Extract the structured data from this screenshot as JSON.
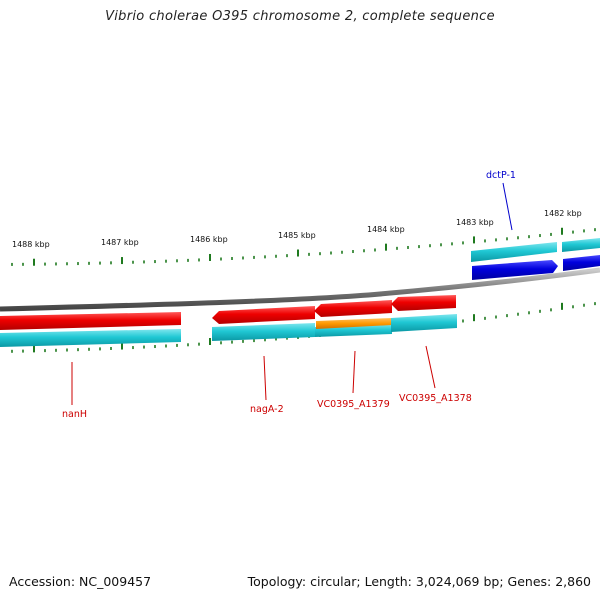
{
  "title": "Vibrio cholerae O395 chromosome 2, complete sequence",
  "footer": {
    "accession": "Accession: NC_009457",
    "summary": "Topology: circular; Length: 3,024,069 bp; Genes: 2,860"
  },
  "scale_labels": [
    "1488 kbp",
    "1487 kbp",
    "1486 kbp",
    "1485 kbp",
    "1484 kbp",
    "1483 kbp",
    "1482 kbp"
  ],
  "gene_labels": {
    "dctP": "dctP-1",
    "nanH": "nanH",
    "nagA": "nagA-2",
    "a1379": "VC0395_A1379",
    "a1378": "VC0395_A1378"
  },
  "colors": {
    "reverse_gene": "#ee0000",
    "forward_gene": "#0000dd",
    "cds": "#00b8c8",
    "misc_feature": "#ff9900",
    "backbone": "#888888",
    "ticks": "#1f7a1f",
    "label_red": "#cc0000",
    "label_blue": "#0000cc"
  }
}
